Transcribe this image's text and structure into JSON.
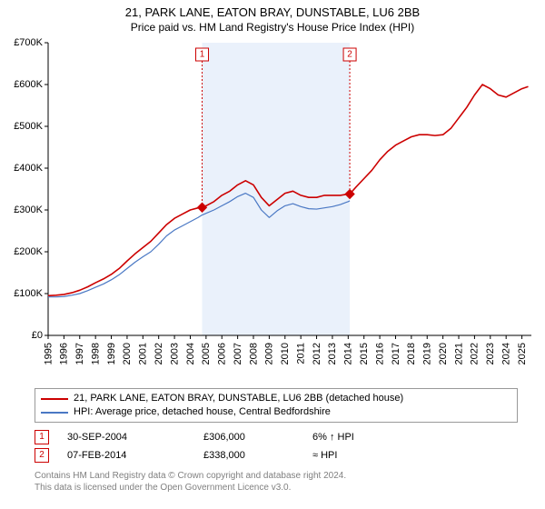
{
  "title_line1": "21, PARK LANE, EATON BRAY, DUNSTABLE, LU6 2BB",
  "title_line2": "Price paid vs. HM Land Registry's House Price Index (HPI)",
  "chart": {
    "type": "line",
    "background_color": "#ffffff",
    "shade_color": "#eaf1fb",
    "axis_color": "#000000",
    "tick_color": "#000000",
    "x_years": [
      1995,
      1996,
      1997,
      1998,
      1999,
      2000,
      2001,
      2002,
      2003,
      2004,
      2005,
      2006,
      2007,
      2008,
      2009,
      2010,
      2011,
      2012,
      2013,
      2014,
      2015,
      2016,
      2017,
      2018,
      2019,
      2020,
      2021,
      2022,
      2023,
      2024,
      2025
    ],
    "xlim": [
      1995,
      2025.6
    ],
    "ylim": [
      0,
      700000
    ],
    "ytick_step": 100000,
    "ytick_labels": [
      "£0",
      "£100K",
      "£200K",
      "£300K",
      "£400K",
      "£500K",
      "£600K",
      "£700K"
    ],
    "series": [
      {
        "name": "property_line",
        "color": "#cc0000",
        "width": 1.6,
        "points": [
          [
            1995.0,
            95000
          ],
          [
            1995.5,
            96000
          ],
          [
            1996.0,
            98000
          ],
          [
            1996.5,
            102000
          ],
          [
            1997.0,
            108000
          ],
          [
            1997.5,
            116000
          ],
          [
            1998.0,
            126000
          ],
          [
            1998.5,
            135000
          ],
          [
            1999.0,
            146000
          ],
          [
            1999.5,
            160000
          ],
          [
            2000.0,
            178000
          ],
          [
            2000.5,
            195000
          ],
          [
            2001.0,
            210000
          ],
          [
            2001.5,
            225000
          ],
          [
            2002.0,
            245000
          ],
          [
            2002.5,
            265000
          ],
          [
            2003.0,
            280000
          ],
          [
            2003.5,
            290000
          ],
          [
            2004.0,
            300000
          ],
          [
            2004.5,
            305000
          ],
          [
            2004.75,
            306000
          ],
          [
            2005.0,
            310000
          ],
          [
            2005.5,
            320000
          ],
          [
            2006.0,
            335000
          ],
          [
            2006.5,
            345000
          ],
          [
            2007.0,
            360000
          ],
          [
            2007.5,
            370000
          ],
          [
            2008.0,
            360000
          ],
          [
            2008.5,
            330000
          ],
          [
            2009.0,
            310000
          ],
          [
            2009.5,
            325000
          ],
          [
            2010.0,
            340000
          ],
          [
            2010.5,
            345000
          ],
          [
            2011.0,
            335000
          ],
          [
            2011.5,
            330000
          ],
          [
            2012.0,
            330000
          ],
          [
            2012.5,
            335000
          ],
          [
            2013.0,
            335000
          ],
          [
            2013.5,
            335000
          ],
          [
            2014.0,
            338000
          ],
          [
            2014.1,
            338000
          ],
          [
            2014.5,
            355000
          ],
          [
            2015.0,
            375000
          ],
          [
            2015.5,
            395000
          ],
          [
            2016.0,
            420000
          ],
          [
            2016.5,
            440000
          ],
          [
            2017.0,
            455000
          ],
          [
            2017.5,
            465000
          ],
          [
            2018.0,
            475000
          ],
          [
            2018.5,
            480000
          ],
          [
            2019.0,
            480000
          ],
          [
            2019.5,
            478000
          ],
          [
            2020.0,
            480000
          ],
          [
            2020.5,
            495000
          ],
          [
            2021.0,
            520000
          ],
          [
            2021.5,
            545000
          ],
          [
            2022.0,
            575000
          ],
          [
            2022.5,
            600000
          ],
          [
            2023.0,
            590000
          ],
          [
            2023.5,
            575000
          ],
          [
            2024.0,
            570000
          ],
          [
            2024.5,
            580000
          ],
          [
            2025.0,
            590000
          ],
          [
            2025.4,
            595000
          ]
        ]
      },
      {
        "name": "hpi_line",
        "color": "#4a78c4",
        "width": 1.2,
        "points": [
          [
            1995.0,
            92000
          ],
          [
            1995.5,
            92000
          ],
          [
            1996.0,
            93000
          ],
          [
            1996.5,
            96000
          ],
          [
            1997.0,
            100000
          ],
          [
            1997.5,
            107000
          ],
          [
            1998.0,
            115000
          ],
          [
            1998.5,
            123000
          ],
          [
            1999.0,
            133000
          ],
          [
            1999.5,
            145000
          ],
          [
            2000.0,
            160000
          ],
          [
            2000.5,
            175000
          ],
          [
            2001.0,
            188000
          ],
          [
            2001.5,
            200000
          ],
          [
            2002.0,
            218000
          ],
          [
            2002.5,
            238000
          ],
          [
            2003.0,
            252000
          ],
          [
            2003.5,
            262000
          ],
          [
            2004.0,
            272000
          ],
          [
            2004.5,
            282000
          ],
          [
            2004.75,
            288000
          ],
          [
            2005.0,
            292000
          ],
          [
            2005.5,
            300000
          ],
          [
            2006.0,
            310000
          ],
          [
            2006.5,
            320000
          ],
          [
            2007.0,
            332000
          ],
          [
            2007.5,
            340000
          ],
          [
            2008.0,
            330000
          ],
          [
            2008.5,
            300000
          ],
          [
            2009.0,
            282000
          ],
          [
            2009.5,
            298000
          ],
          [
            2010.0,
            310000
          ],
          [
            2010.5,
            315000
          ],
          [
            2011.0,
            308000
          ],
          [
            2011.5,
            303000
          ],
          [
            2012.0,
            302000
          ],
          [
            2012.5,
            305000
          ],
          [
            2013.0,
            308000
          ],
          [
            2013.5,
            313000
          ],
          [
            2014.0,
            320000
          ],
          [
            2014.1,
            322000
          ]
        ]
      }
    ],
    "markers": [
      {
        "label": "1",
        "x": 2004.75,
        "y": 306000,
        "color": "#cc0000"
      },
      {
        "label": "2",
        "x": 2014.1,
        "y": 338000,
        "color": "#cc0000"
      }
    ],
    "marker_size": 5,
    "flag_border": "#cc0000",
    "flag_text_color": "#cc0000"
  },
  "legend": {
    "items": [
      {
        "color": "#cc0000",
        "label": "21, PARK LANE, EATON BRAY, DUNSTABLE, LU6 2BB (detached house)"
      },
      {
        "color": "#4a78c4",
        "label": "HPI: Average price, detached house, Central Bedfordshire"
      }
    ]
  },
  "transactions": [
    {
      "num": "1",
      "date": "30-SEP-2004",
      "price": "£306,000",
      "pct": "6% ↑ HPI"
    },
    {
      "num": "2",
      "date": "07-FEB-2014",
      "price": "£338,000",
      "pct": "≈ HPI"
    }
  ],
  "marker_box_color": "#cc0000",
  "footnote_line1": "Contains HM Land Registry data © Crown copyright and database right 2024.",
  "footnote_line2": "This data is licensed under the Open Government Licence v3.0."
}
